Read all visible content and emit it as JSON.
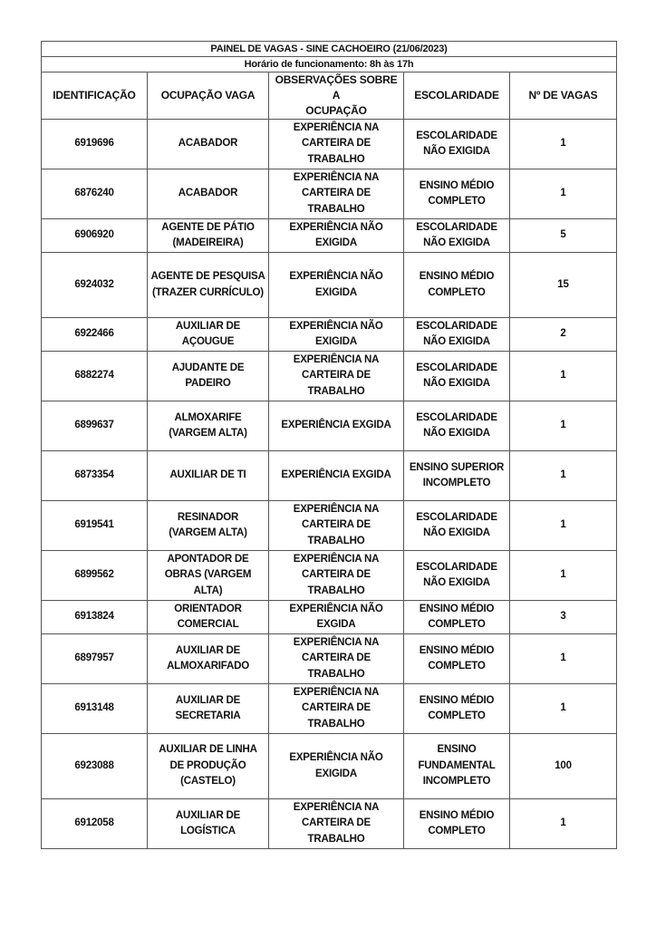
{
  "title": "PAINEL DE VAGAS - SINE CACHOEIRO (21/06/2023)",
  "subtitle": "Horário de funcionamento: 8h às 17h",
  "columns": [
    "IDENTIFICAÇÃO",
    "OCUPAÇÃO VAGA",
    "OBSERVAÇÕES SOBRE A\nOCUPAÇÃO",
    "ESCOLARIDADE",
    "Nº DE VAGAS"
  ],
  "rows": [
    [
      "6919696",
      "ACABADOR",
      "EXPERIÊNCIA NA\nCARTEIRA DE\nTRABALHO",
      "ESCOLARIDADE\nNÃO EXIGIDA",
      "1"
    ],
    [
      "6876240",
      "ACABADOR",
      "EXPERIÊNCIA NA\nCARTEIRA DE\nTRABALHO",
      "ENSINO MÉDIO\nCOMPLETO",
      "1"
    ],
    [
      "6906920",
      "AGENTE DE PÁTIO\n(MADEIREIRA)",
      "EXPERIÊNCIA NÃO\nEXIGIDA",
      "ESCOLARIDADE\nNÃO EXIGIDA",
      "5"
    ],
    [
      "6924032",
      "AGENTE DE PESQUISA\n(TRAZER CURRÍCULO)",
      "EXPERIÊNCIA NÃO\nEXIGIDA",
      "ENSINO MÉDIO\nCOMPLETO",
      "15"
    ],
    [
      "6922466",
      "AUXILIAR DE\nAÇOUGUE",
      "EXPERIÊNCIA NÃO\nEXIGIDA",
      "ESCOLARIDADE\nNÃO EXIGIDA",
      "2"
    ],
    [
      "6882274",
      "AJUDANTE DE\nPADEIRO",
      "EXPERIÊNCIA NA\nCARTEIRA DE\nTRABALHO",
      "ESCOLARIDADE\nNÃO EXIGIDA",
      "1"
    ],
    [
      "6899637",
      "ALMOXARIFE\n(VARGEM ALTA)",
      "EXPERIÊNCIA EXGIDA",
      "ESCOLARIDADE\nNÃO EXIGIDA",
      "1"
    ],
    [
      "6873354",
      "AUXILIAR DE TI",
      "EXPERIÊNCIA EXGIDA",
      "ENSINO SUPERIOR\nINCOMPLETO",
      "1"
    ],
    [
      "6919541",
      "RESINADOR\n(VARGEM ALTA)",
      "EXPERIÊNCIA NA\nCARTEIRA DE\nTRABALHO",
      "ESCOLARIDADE\nNÃO EXIGIDA",
      "1"
    ],
    [
      "6899562",
      "APONTADOR DE\nOBRAS (VARGEM\nALTA)",
      "EXPERIÊNCIA NA\nCARTEIRA DE\nTRABALHO",
      "ESCOLARIDADE\nNÃO EXIGIDA",
      "1"
    ],
    [
      "6913824",
      "ORIENTADOR\nCOMERCIAL",
      "EXPERIÊNCIA NÃO\nEXGIDA",
      "ENSINO MÉDIO\nCOMPLETO",
      "3"
    ],
    [
      "6897957",
      "AUXILIAR DE\nALMOXARIFADO",
      "EXPERIÊNCIA NA\nCARTEIRA DE\nTRABALHO",
      "ENSINO MÉDIO\nCOMPLETO",
      "1"
    ],
    [
      "6913148",
      "AUXILIAR DE\nSECRETARIA",
      "EXPERIÊNCIA NA\nCARTEIRA DE\nTRABALHO",
      "ENSINO MÉDIO\nCOMPLETO",
      "1"
    ],
    [
      "6923088",
      "AUXILIAR DE LINHA\nDE PRODUÇÃO\n(CASTELO)",
      "EXPERIÊNCIA NÃO\nEXIGIDA",
      "ENSINO\nFUNDAMENTAL\nINCOMPLETO",
      "100"
    ],
    [
      "6912058",
      "AUXILIAR DE\nLOGÍSTICA",
      "EXPERIÊNCIA NA\nCARTEIRA DE\nTRABALHO",
      "ENSINO MÉDIO\nCOMPLETO",
      "1"
    ]
  ]
}
